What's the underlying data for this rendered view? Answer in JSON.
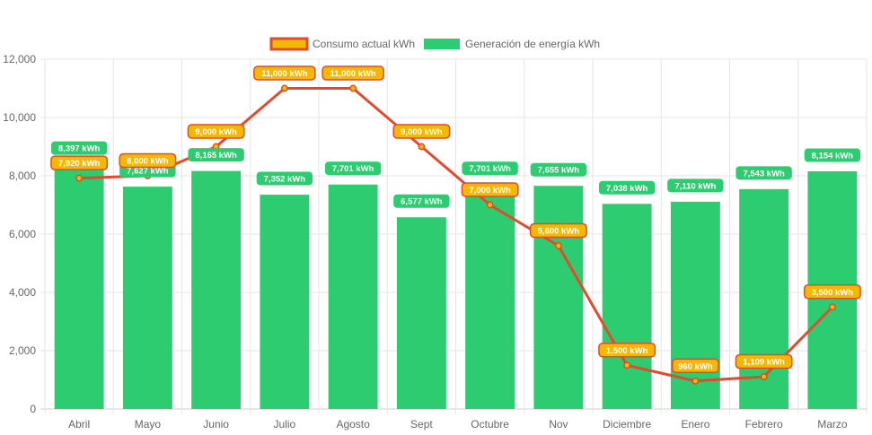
{
  "chart_data": {
    "type": "bar",
    "categories": [
      "Abril",
      "Mayo",
      "Junio",
      "Julio",
      "Agosto",
      "Sept",
      "Octubre",
      "Nov",
      "Diciembre",
      "Enero",
      "Febrero",
      "Marzo"
    ],
    "ylim": [
      0,
      12000
    ],
    "yticks": [
      "0",
      "2,000",
      "4,000",
      "6,000",
      "8,000",
      "10,000",
      "12,000"
    ],
    "ytick_values": [
      0,
      2000,
      4000,
      6000,
      8000,
      10000,
      12000
    ],
    "grid": true,
    "legend_position": "top-center",
    "series": [
      {
        "name": "Consumo actual kWh",
        "type": "line",
        "color": "#e04b2f",
        "fill": "#f5b800",
        "values": [
          7920,
          8000,
          9000,
          11000,
          11000,
          9000,
          7000,
          5600,
          1500,
          960,
          1109,
          3500
        ],
        "labels": [
          "7,920 kWh",
          "8,000 kWh",
          "9,000 kWh",
          "11,000 kWh",
          "11,000 kWh",
          "9,000 kWh",
          "7,000 kWh",
          "5,600 kWh",
          "1,500 kWh",
          "960 kWh",
          "1,109 kWh",
          "3,500 kWh"
        ]
      },
      {
        "name": "Generación de energía kWh",
        "type": "bar",
        "color": "#2ecc71",
        "values": [
          8397,
          7627,
          8165,
          7352,
          7701,
          6577,
          7701,
          7655,
          7038,
          7110,
          7543,
          8154
        ],
        "labels": [
          "8,397 kWh",
          "7,627 kWh",
          "8,165 kWh",
          "7,352 kWh",
          "7,701 kWh",
          "6,577 kWh",
          "7,701 kWh",
          "7,655 kWh",
          "7,038 kWh",
          "7,110 kWh",
          "7,543 kWh",
          "8,154 kWh"
        ]
      }
    ]
  }
}
